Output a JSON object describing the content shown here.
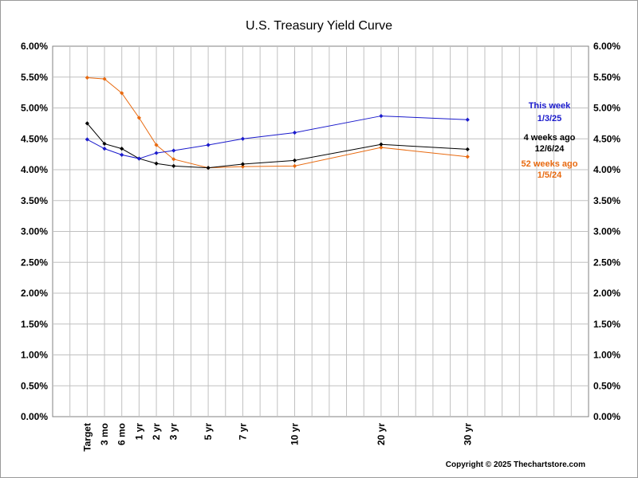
{
  "chart_data": {
    "type": "line",
    "title": "U.S. Treasury Yield Curve",
    "categories": [
      "Target",
      "3 mo",
      "6 mo",
      "1 yr",
      "2 yr",
      "3 yr",
      "5 yr",
      "7 yr",
      "10 yr",
      "20 yr",
      "30 yr"
    ],
    "x_years": [
      -0.75,
      -0.25,
      0.25,
      0.75,
      1.25,
      1.75,
      2.75,
      3.75,
      5.25,
      7.75,
      10.25
    ],
    "y_ticks": [
      "0.00%",
      "0.50%",
      "1.00%",
      "1.50%",
      "2.00%",
      "2.50%",
      "3.00%",
      "3.50%",
      "4.00%",
      "4.50%",
      "5.00%",
      "5.50%",
      "6.00%"
    ],
    "ylim": [
      0,
      6
    ],
    "grid": true,
    "legend": "inline-right",
    "series": [
      {
        "name": "This week",
        "date": "1/3/25",
        "color": "#1a1acc",
        "values": [
          4.49,
          4.34,
          4.24,
          4.18,
          4.27,
          4.31,
          4.4,
          4.5,
          4.6,
          4.87,
          4.81
        ]
      },
      {
        "name": "4 weeks ago",
        "date": "12/6/24",
        "color": "#000000",
        "values": [
          4.75,
          4.42,
          4.34,
          4.18,
          4.1,
          4.06,
          4.03,
          4.09,
          4.15,
          4.41,
          4.33
        ]
      },
      {
        "name": "52 weeks ago",
        "date": "1/5/24",
        "color": "#e86a10",
        "values": [
          5.49,
          5.47,
          5.24,
          4.84,
          4.4,
          4.17,
          4.03,
          4.05,
          4.06,
          4.36,
          4.21
        ]
      }
    ]
  },
  "copyright": "Copyright © 2025 Thechartstore.com"
}
